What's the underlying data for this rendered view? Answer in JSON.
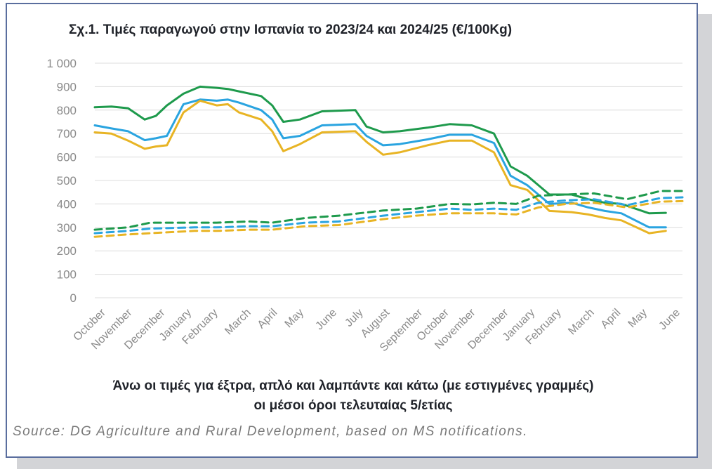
{
  "figure": {
    "title": "Σχ.1. Τιμές παραγωγού στην Ισπανία το 2023/24 και 2024/25 (€/100Kg)",
    "caption_line1": "Άνω οι τιμές για έξτρα, απλό και λαμπάντε και κάτω (με εστιγμένες γραμμές)",
    "caption_line2": "οι μέσοι όροι τελευταίας 5/ετίας",
    "source": "Source: DG Agriculture and Rural Development, based on MS notifications."
  },
  "chart_data": {
    "type": "line",
    "title": "Σχ.1. Τιμές παραγωγού στην Ισπανία το 2023/24 και 2024/25 (€/100Kg)",
    "xlabel": "",
    "ylabel": "",
    "ylim": [
      0,
      1000
    ],
    "yticks": [
      {
        "value": 0,
        "label": "0"
      },
      {
        "value": 100,
        "label": "100"
      },
      {
        "value": 200,
        "label": "200"
      },
      {
        "value": 300,
        "label": "300"
      },
      {
        "value": 400,
        "label": "400"
      },
      {
        "value": 500,
        "label": "500"
      },
      {
        "value": 600,
        "label": "600"
      },
      {
        "value": 700,
        "label": "700"
      },
      {
        "value": 800,
        "label": "800"
      },
      {
        "value": 900,
        "label": "900"
      },
      {
        "value": 1000,
        "label": "1 000"
      }
    ],
    "grid": true,
    "legend": "none",
    "x_tick_labels": [
      {
        "label": "October",
        "index": 0
      },
      {
        "label": "November",
        "index": 4
      },
      {
        "label": "December",
        "index": 9
      },
      {
        "label": "January",
        "index": 13
      },
      {
        "label": "February",
        "index": 17
      },
      {
        "label": "March",
        "index": 22
      },
      {
        "label": "April",
        "index": 26
      },
      {
        "label": "May",
        "index": 30
      },
      {
        "label": "June",
        "index": 35
      },
      {
        "label": "July",
        "index": 39
      },
      {
        "label": "August",
        "index": 43
      },
      {
        "label": "September",
        "index": 48
      },
      {
        "label": "October",
        "index": 52
      },
      {
        "label": "November",
        "index": 56
      },
      {
        "label": "December",
        "index": 61
      },
      {
        "label": "January",
        "index": 65
      },
      {
        "label": "February",
        "index": 69
      },
      {
        "label": "March",
        "index": 74
      },
      {
        "label": "April",
        "index": 78
      },
      {
        "label": "May",
        "index": 82
      },
      {
        "label": "June",
        "index": 87
      }
    ],
    "x_count": 90,
    "series": [
      {
        "color": "#1e9a4c",
        "style": "solid",
        "points": [
          [
            0,
            812
          ],
          [
            3,
            815
          ],
          [
            6,
            808
          ],
          [
            9,
            760
          ],
          [
            11,
            775
          ],
          [
            13,
            820
          ],
          [
            16,
            870
          ],
          [
            19,
            900
          ],
          [
            22,
            895
          ],
          [
            24,
            890
          ],
          [
            26,
            880
          ],
          [
            30,
            860
          ],
          [
            32,
            820
          ],
          [
            34,
            750
          ],
          [
            37,
            760
          ],
          [
            41,
            795
          ],
          [
            47,
            800
          ],
          [
            49,
            730
          ],
          [
            52,
            705
          ],
          [
            55,
            710
          ],
          [
            60,
            725
          ],
          [
            64,
            740
          ],
          [
            68,
            735
          ],
          [
            72,
            700
          ],
          [
            75,
            560
          ],
          [
            78,
            520
          ],
          [
            82,
            440
          ],
          [
            86,
            440
          ],
          [
            89,
            420
          ],
          [
            92,
            405
          ],
          [
            95,
            400
          ],
          [
            100,
            360
          ],
          [
            103,
            362
          ]
        ]
      },
      {
        "color": "#2aa4e0",
        "style": "solid",
        "points": [
          [
            0,
            735
          ],
          [
            3,
            722
          ],
          [
            6,
            710
          ],
          [
            9,
            672
          ],
          [
            11,
            680
          ],
          [
            13,
            690
          ],
          [
            16,
            825
          ],
          [
            19,
            845
          ],
          [
            22,
            840
          ],
          [
            24,
            845
          ],
          [
            26,
            832
          ],
          [
            30,
            800
          ],
          [
            32,
            760
          ],
          [
            34,
            680
          ],
          [
            37,
            690
          ],
          [
            41,
            735
          ],
          [
            47,
            740
          ],
          [
            49,
            690
          ],
          [
            52,
            650
          ],
          [
            55,
            655
          ],
          [
            60,
            675
          ],
          [
            64,
            695
          ],
          [
            68,
            695
          ],
          [
            72,
            660
          ],
          [
            75,
            520
          ],
          [
            78,
            480
          ],
          [
            82,
            400
          ],
          [
            86,
            405
          ],
          [
            89,
            385
          ],
          [
            92,
            370
          ],
          [
            95,
            360
          ],
          [
            100,
            300
          ],
          [
            103,
            300
          ]
        ]
      },
      {
        "color": "#e8b424",
        "style": "solid",
        "points": [
          [
            0,
            705
          ],
          [
            3,
            700
          ],
          [
            6,
            670
          ],
          [
            9,
            635
          ],
          [
            11,
            645
          ],
          [
            13,
            650
          ],
          [
            16,
            790
          ],
          [
            19,
            840
          ],
          [
            22,
            820
          ],
          [
            24,
            825
          ],
          [
            26,
            790
          ],
          [
            30,
            760
          ],
          [
            32,
            710
          ],
          [
            34,
            625
          ],
          [
            37,
            655
          ],
          [
            41,
            705
          ],
          [
            47,
            710
          ],
          [
            49,
            665
          ],
          [
            52,
            610
          ],
          [
            55,
            620
          ],
          [
            60,
            650
          ],
          [
            64,
            670
          ],
          [
            68,
            670
          ],
          [
            72,
            620
          ],
          [
            75,
            480
          ],
          [
            78,
            460
          ],
          [
            82,
            370
          ],
          [
            86,
            365
          ],
          [
            89,
            355
          ],
          [
            92,
            340
          ],
          [
            95,
            330
          ],
          [
            100,
            275
          ],
          [
            103,
            285
          ]
        ]
      },
      {
        "color": "#1e9a4c",
        "style": "dashed",
        "points": [
          [
            0,
            290
          ],
          [
            6,
            300
          ],
          [
            10,
            320
          ],
          [
            18,
            320
          ],
          [
            22,
            320
          ],
          [
            28,
            325
          ],
          [
            32,
            320
          ],
          [
            38,
            340
          ],
          [
            44,
            350
          ],
          [
            52,
            372
          ],
          [
            58,
            380
          ],
          [
            64,
            400
          ],
          [
            68,
            398
          ],
          [
            72,
            405
          ],
          [
            76,
            400
          ],
          [
            80,
            435
          ],
          [
            85,
            440
          ],
          [
            90,
            445
          ],
          [
            96,
            420
          ],
          [
            102,
            455
          ],
          [
            106,
            455
          ]
        ]
      },
      {
        "color": "#2aa4e0",
        "style": "dashed",
        "points": [
          [
            0,
            275
          ],
          [
            6,
            285
          ],
          [
            10,
            295
          ],
          [
            18,
            300
          ],
          [
            22,
            300
          ],
          [
            28,
            305
          ],
          [
            32,
            305
          ],
          [
            38,
            320
          ],
          [
            44,
            325
          ],
          [
            52,
            350
          ],
          [
            58,
            365
          ],
          [
            64,
            380
          ],
          [
            68,
            375
          ],
          [
            72,
            380
          ],
          [
            76,
            375
          ],
          [
            80,
            405
          ],
          [
            85,
            415
          ],
          [
            90,
            420
          ],
          [
            96,
            395
          ],
          [
            102,
            425
          ],
          [
            106,
            428
          ]
        ]
      },
      {
        "color": "#e8b424",
        "style": "dashed",
        "points": [
          [
            0,
            260
          ],
          [
            6,
            270
          ],
          [
            10,
            275
          ],
          [
            18,
            285
          ],
          [
            22,
            285
          ],
          [
            28,
            290
          ],
          [
            32,
            290
          ],
          [
            38,
            305
          ],
          [
            44,
            310
          ],
          [
            52,
            335
          ],
          [
            58,
            350
          ],
          [
            64,
            360
          ],
          [
            68,
            360
          ],
          [
            72,
            360
          ],
          [
            76,
            355
          ],
          [
            80,
            385
          ],
          [
            85,
            400
          ],
          [
            90,
            405
          ],
          [
            96,
            385
          ],
          [
            102,
            410
          ],
          [
            106,
            412
          ]
        ]
      }
    ]
  }
}
